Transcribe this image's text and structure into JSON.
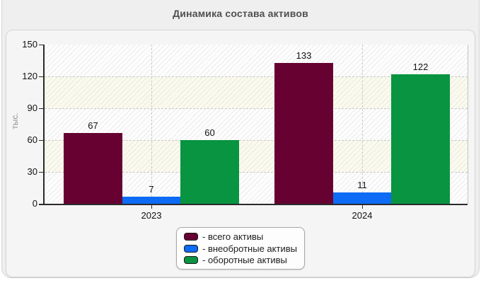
{
  "chart_data": {
    "type": "bar",
    "title": "Динамика состава активов",
    "categories": [
      "2023",
      "2024"
    ],
    "series": [
      {
        "name": "всего активы",
        "legend_label": "- всего активы",
        "color": "#670132",
        "values": [
          67,
          133
        ]
      },
      {
        "name": "внеобротные активы",
        "legend_label": "- внеобротные активы",
        "color": "#0d6bf5",
        "values": [
          7,
          11
        ]
      },
      {
        "name": "оборотные активы",
        "legend_label": "- оборотные активы",
        "color": "#089440",
        "values": [
          60,
          122
        ]
      }
    ],
    "xlabel": "",
    "ylabel": "тыс.",
    "yticks": [
      0,
      30,
      60,
      90,
      120,
      150
    ],
    "ylim": [
      0,
      150
    ],
    "grid": "dashed",
    "plot_hatch": true,
    "bar_value_labels": true,
    "legend_position": "bottom-center",
    "colors": {
      "axis": "#2a2a2a",
      "gridline": "#c9c9c9",
      "panel_bg": "#f5f5f5",
      "widget_bg": "#efefef",
      "band_white": "#fdfdfd",
      "band_ivory": "#fafaee",
      "title_text": "#4f4f4f",
      "tick_text": "#111111",
      "ylabel_text": "#909090"
    }
  }
}
